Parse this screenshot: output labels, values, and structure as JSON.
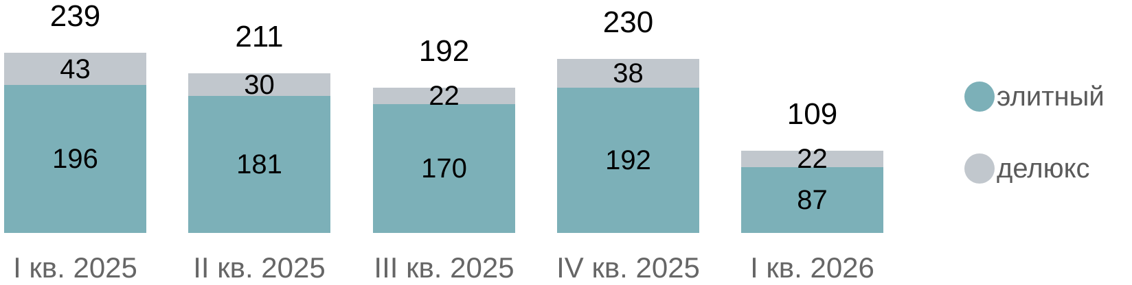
{
  "chart_data": {
    "type": "bar",
    "stacked": true,
    "orientation": "vertical",
    "categories": [
      "I кв. 2025",
      "II кв. 2025",
      "III кв. 2025",
      "IV кв. 2025",
      "I кв. 2026"
    ],
    "series": [
      {
        "name": "элитный",
        "color": "#7cb0b8",
        "values": [
          196,
          181,
          170,
          192,
          87
        ]
      },
      {
        "name": "делюкс",
        "color": "#c1c7cd",
        "values": [
          43,
          30,
          22,
          38,
          22
        ]
      }
    ],
    "totals": [
      239,
      211,
      192,
      230,
      109
    ],
    "title": "",
    "xlabel": "",
    "ylabel": "",
    "grid": false,
    "axes_visible": false,
    "value_labels": "inside-segments",
    "total_labels": "above-bars",
    "legend_position": "right"
  },
  "styles": {
    "background": "#ffffff",
    "value_label_color": "#000000",
    "category_label_color": "#666666",
    "legend_text_color": "#5a5a5a"
  }
}
